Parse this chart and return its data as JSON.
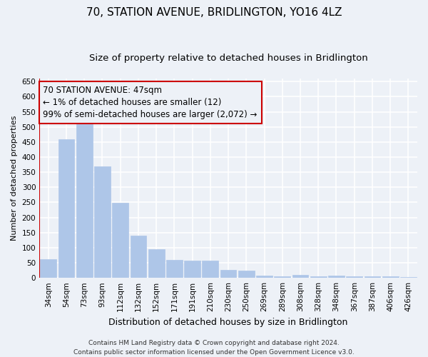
{
  "title": "70, STATION AVENUE, BRIDLINGTON, YO16 4LZ",
  "subtitle": "Size of property relative to detached houses in Bridlington",
  "xlabel": "Distribution of detached houses by size in Bridlington",
  "ylabel": "Number of detached properties",
  "categories": [
    "34sqm",
    "54sqm",
    "73sqm",
    "93sqm",
    "112sqm",
    "132sqm",
    "152sqm",
    "171sqm",
    "191sqm",
    "210sqm",
    "230sqm",
    "250sqm",
    "269sqm",
    "289sqm",
    "308sqm",
    "328sqm",
    "348sqm",
    "367sqm",
    "387sqm",
    "406sqm",
    "426sqm"
  ],
  "values": [
    62,
    458,
    521,
    370,
    248,
    140,
    95,
    60,
    58,
    57,
    26,
    25,
    8,
    5,
    11,
    5,
    7,
    5,
    4,
    5,
    3
  ],
  "bar_color": "#aec6e8",
  "bar_edgecolor": "#aec6e8",
  "annotation_box_edgecolor": "#cc0000",
  "annotation_line1": "70 STATION AVENUE: 47sqm",
  "annotation_line2": "← 1% of detached houses are smaller (12)",
  "annotation_line3": "99% of semi-detached houses are larger (2,072) →",
  "ylim": [
    0,
    660
  ],
  "yticks": [
    0,
    50,
    100,
    150,
    200,
    250,
    300,
    350,
    400,
    450,
    500,
    550,
    600,
    650
  ],
  "footnote1": "Contains HM Land Registry data © Crown copyright and database right 2024.",
  "footnote2": "Contains public sector information licensed under the Open Government Licence v3.0.",
  "background_color": "#edf1f7",
  "grid_color": "#ffffff",
  "title_fontsize": 11,
  "subtitle_fontsize": 9.5,
  "xlabel_fontsize": 9,
  "ylabel_fontsize": 8,
  "tick_fontsize": 7.5,
  "annotation_fontsize": 8.5,
  "footnote_fontsize": 6.5
}
